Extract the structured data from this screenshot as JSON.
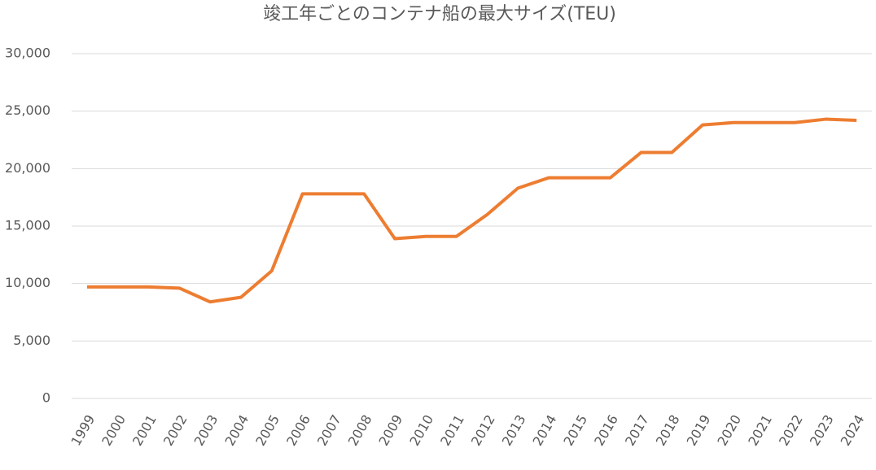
{
  "chart_data": {
    "type": "line",
    "title": "竣工年ごとのコンテナ船の最大サイズ(TEU)",
    "categories": [
      "1999",
      "2000",
      "2001",
      "2002",
      "2003",
      "2004",
      "2005",
      "2006",
      "2007",
      "2008",
      "2009",
      "2010",
      "2011",
      "2012",
      "2013",
      "2014",
      "2015",
      "2016",
      "2017",
      "2018",
      "2019",
      "2020",
      "2021",
      "2022",
      "2023",
      "2024"
    ],
    "series": [
      {
        "name": "最大サイズ",
        "color": "#ed7d31",
        "values": [
          9700,
          9700,
          9700,
          9600,
          8400,
          8800,
          11100,
          17800,
          17800,
          17800,
          13900,
          14100,
          14100,
          16000,
          18300,
          19200,
          19200,
          19200,
          21400,
          21400,
          23800,
          24000,
          24000,
          24000,
          24300,
          24200
        ]
      }
    ],
    "ylim": [
      0,
      30000
    ],
    "yticks": [
      0,
      {
        "value": 5000,
        "label": "5,000"
      },
      {
        "value": 10000,
        "label": "10,000"
      },
      {
        "value": 15000,
        "label": "15,000"
      },
      {
        "value": 20000,
        "label": "20,000"
      },
      {
        "value": 25000,
        "label": "25,000"
      },
      {
        "value": 30000,
        "label": "30,000"
      }
    ],
    "grid": true
  }
}
